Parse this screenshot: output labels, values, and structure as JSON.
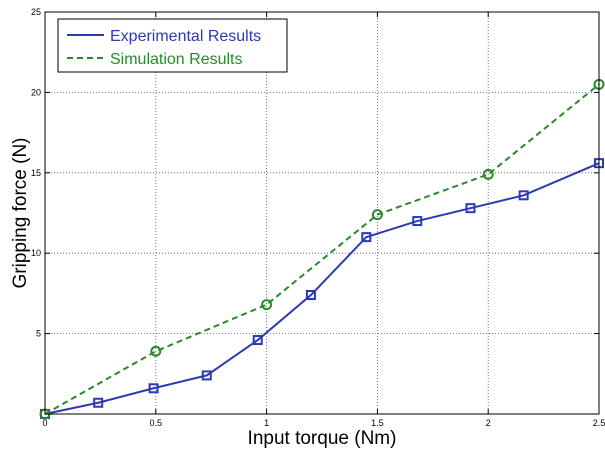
{
  "chart_data": {
    "type": "line",
    "xlabel": "Input torque (Nm)",
    "ylabel": "Gripping force (N)",
    "xlim": [
      0,
      2.5
    ],
    "ylim": [
      0,
      25
    ],
    "x_ticks": [
      "0",
      "0.5",
      "1",
      "1.5",
      "2",
      "2.5"
    ],
    "y_ticks": [
      "",
      "5",
      "10",
      "15",
      "20",
      "25"
    ],
    "grid": true,
    "legend_position": "top-left",
    "series": [
      {
        "name": "Experimental Results",
        "color": "#2b3bb0",
        "line_style": "solid",
        "marker": "square",
        "x": [
          0,
          0.24,
          0.49,
          0.73,
          0.96,
          1.2,
          1.45,
          1.68,
          1.92,
          2.16,
          2.5
        ],
        "y": [
          0,
          0.7,
          1.6,
          2.4,
          4.6,
          7.4,
          11.0,
          12.0,
          12.8,
          13.6,
          15.6
        ]
      },
      {
        "name": "Simulation Results",
        "color": "#2a8a2a",
        "line_style": "dashed",
        "marker": "circle",
        "x": [
          0,
          0.5,
          1.0,
          1.5,
          2.0,
          2.5
        ],
        "y": [
          0,
          3.9,
          6.8,
          12.4,
          14.9,
          20.5
        ]
      }
    ]
  }
}
